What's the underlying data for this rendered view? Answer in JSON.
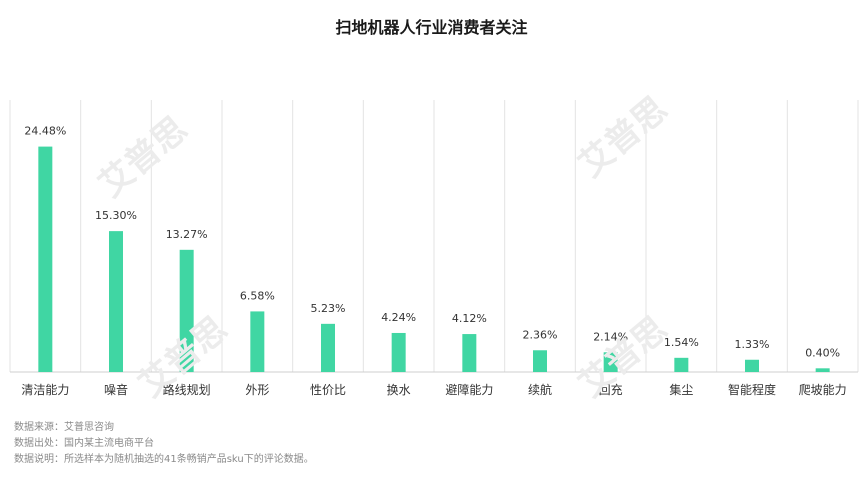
{
  "chart_data": {
    "type": "bar",
    "title": "扫地机器人行业消费者关注",
    "categories": [
      "清洁能力",
      "噪音",
      "路线规划",
      "外形",
      "性价比",
      "换水",
      "避障能力",
      "续航",
      "回充",
      "集尘",
      "智能程度",
      "爬坡能力"
    ],
    "values": [
      24.48,
      15.3,
      13.27,
      6.58,
      5.23,
      4.24,
      4.12,
      2.36,
      2.14,
      1.54,
      1.33,
      0.4
    ],
    "value_labels": [
      "24.48%",
      "15.30%",
      "13.27%",
      "6.58%",
      "5.23%",
      "4.24%",
      "4.12%",
      "2.36%",
      "2.14%",
      "1.54%",
      "1.33%",
      "0.40%"
    ],
    "xlabel": "",
    "ylabel": "",
    "ylim": [
      0,
      30
    ],
    "grid": "vertical separators",
    "bar_color": "#40d6a3"
  },
  "notes": [
    "数据来源：艾普思咨询",
    "数据出处：国内某主流电商平台",
    "数据说明：所选样本为随机抽选的41条畅销产品sku下的评论数据。"
  ],
  "watermark": "艾普思"
}
